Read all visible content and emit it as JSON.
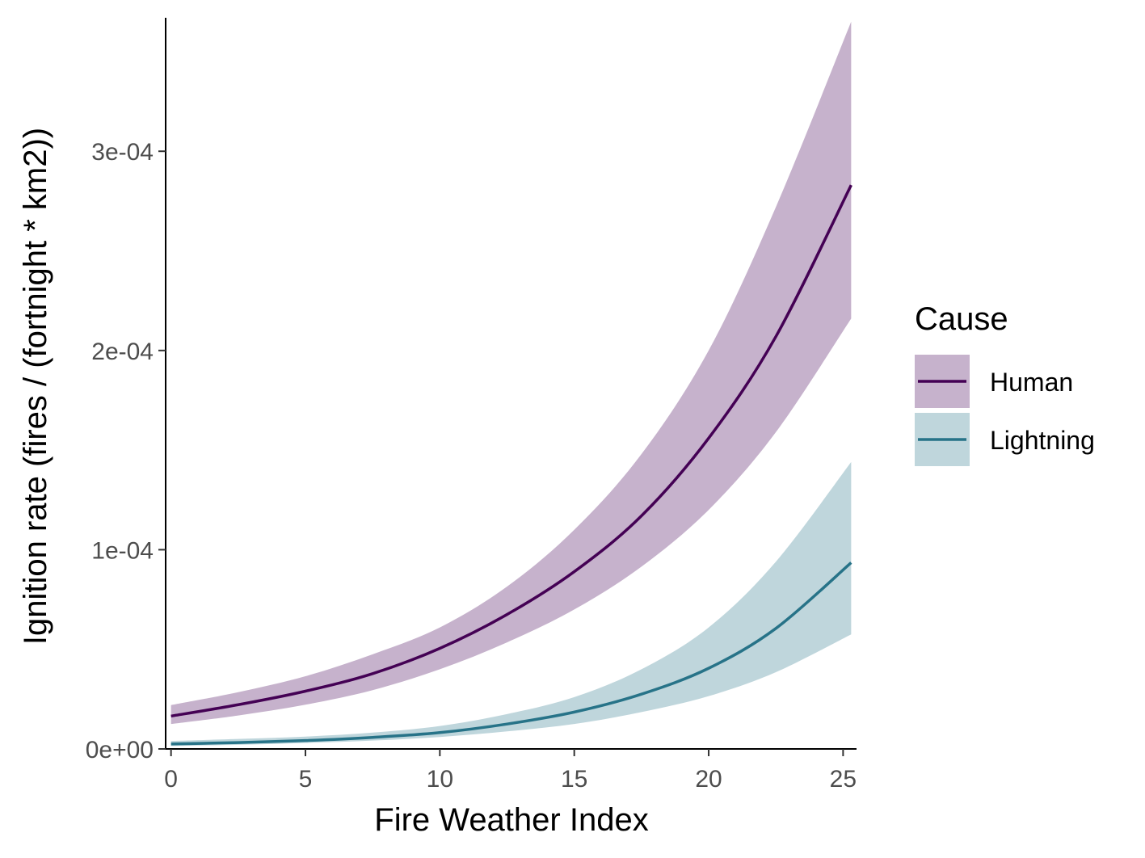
{
  "chart_data": {
    "type": "line",
    "xlabel": "Fire Weather Index",
    "ylabel": "Ignition rate (fires / (fortnight * km2))",
    "xlim": [
      -0.2,
      25.5
    ],
    "ylim": [
      0,
      0.000367
    ],
    "x_ticks": [
      0,
      5,
      10,
      15,
      20,
      25
    ],
    "x_tick_labels": [
      "0",
      "5",
      "10",
      "15",
      "20",
      "25"
    ],
    "y_ticks": [
      0,
      0.0001,
      0.0002,
      0.0003
    ],
    "y_tick_labels": [
      "0e+00",
      "1e-04",
      "2e-04",
      "3e-04"
    ],
    "grid": false,
    "legend": {
      "title": "Cause",
      "position": "right"
    },
    "x": [
      0,
      2.5,
      5,
      7.5,
      10,
      12.5,
      15,
      17.5,
      20,
      22.5,
      25.3
    ],
    "series": [
      {
        "name": "Human",
        "color": "#440154",
        "fill": "#c6b2cc",
        "values": [
          1.65e-05,
          2.22e-05,
          2.9e-05,
          3.78e-05,
          5.05e-05,
          6.75e-05,
          8.9e-05,
          0.000117,
          0.000156,
          0.000207,
          0.000283
        ],
        "lower": [
          1.25e-05,
          1.68e-05,
          2.22e-05,
          2.95e-05,
          4e-05,
          5.35e-05,
          7e-05,
          9.15e-05,
          0.00012,
          0.000159,
          0.000216
        ],
        "upper": [
          2.2e-05,
          2.85e-05,
          3.65e-05,
          4.75e-05,
          6.1e-05,
          8.15e-05,
          0.00011,
          0.000148,
          0.0002,
          0.000272,
          0.000365
        ]
      },
      {
        "name": "Lightning",
        "color": "#277388",
        "fill": "#bfd6dc",
        "values": [
          2.5e-06,
          3.2e-06,
          4.2e-06,
          5.8e-06,
          8.2e-06,
          1.25e-05,
          1.85e-05,
          2.75e-05,
          4.05e-05,
          6.05e-05,
          9.35e-05
        ],
        "lower": [
          1.5e-06,
          2.1e-06,
          3e-06,
          4.2e-06,
          6e-06,
          8.8e-06,
          1.25e-05,
          1.85e-05,
          2.65e-05,
          3.85e-05,
          5.75e-05
        ],
        "upper": [
          4e-06,
          5e-06,
          6.2e-06,
          8.2e-06,
          1.15e-05,
          1.75e-05,
          2.6e-05,
          4e-05,
          6.1e-05,
          9.4e-05,
          0.000144
        ]
      }
    ]
  }
}
